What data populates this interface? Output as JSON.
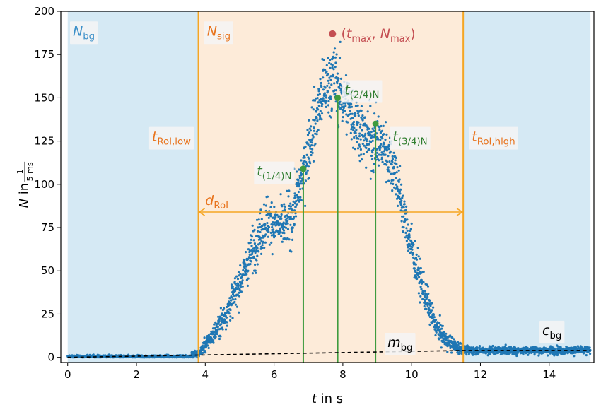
{
  "chart_data": {
    "type": "scatter",
    "xlabel": {
      "var": "t",
      "rest": " in s"
    },
    "ylabel": {
      "var": "N",
      "mid": " in ",
      "frac_num": "1",
      "frac_den": "5 ms"
    },
    "xlim": [
      -0.2,
      15.3
    ],
    "ylim": [
      -3,
      200
    ],
    "xticks": [
      0,
      2,
      4,
      6,
      8,
      10,
      12,
      14
    ],
    "yticks": [
      0,
      25,
      50,
      75,
      100,
      125,
      150,
      175,
      200
    ],
    "grid": false,
    "colors": {
      "points": "#1f77b4",
      "bg_region": "#d5e9f4",
      "sig_region": "#fdebd9",
      "roi_lines": "#f5a623",
      "quantile_lines": "#3e9b3e",
      "quantile_text": "#2f7d2f",
      "max_marker": "#c44e52",
      "nbg_text": "#3b8fc8",
      "roi_text": "#e8731c",
      "label_box": "#f4f4f4"
    },
    "regions": {
      "background_left": [
        0,
        3.8
      ],
      "signal": [
        3.8,
        11.5
      ],
      "background_right": [
        11.5,
        15.2
      ]
    },
    "roi": {
      "low": 3.8,
      "high": 11.5,
      "arrow_y": 84
    },
    "quantiles": [
      {
        "label_main": "t",
        "label_sub": "(1/4)N",
        "t": 6.85,
        "N": 109
      },
      {
        "label_main": "t",
        "label_sub": "(2/4)N",
        "t": 7.85,
        "N": 150
      },
      {
        "label_main": "t",
        "label_sub": "(3/4)N",
        "t": 8.95,
        "N": 135
      }
    ],
    "max_point": {
      "t": 7.7,
      "N": 187
    },
    "background_line": {
      "x": [
        0,
        11.5,
        15.2
      ],
      "y": [
        0,
        4,
        4
      ]
    },
    "signal_profile": {
      "t": [
        3.8,
        4.2,
        4.6,
        5.0,
        5.4,
        5.8,
        6.2,
        6.5,
        6.8,
        7.1,
        7.4,
        7.7,
        8.0,
        8.3,
        8.6,
        8.9,
        9.2,
        9.5,
        9.8,
        10.1,
        10.4,
        10.7,
        11.0,
        11.3,
        11.5
      ],
      "N": [
        2,
        12,
        25,
        43,
        63,
        80,
        75,
        80,
        103,
        130,
        152,
        162,
        150,
        140,
        128,
        125,
        122,
        110,
        80,
        55,
        35,
        18,
        10,
        6,
        5
      ]
    },
    "labels": {
      "nbg_main": "N",
      "nbg_sub": "bg",
      "nsig_main": "N",
      "nsig_sub": "sig",
      "troi_low_main": "t",
      "troi_low_sub": "RoI,low",
      "troi_high_main": "t",
      "troi_high_sub": "RoI,high",
      "droi_main": "d",
      "droi_sub": "RoI",
      "max_open": "(",
      "max_t": "t",
      "max_t_sub": "max",
      "max_sep": ", ",
      "max_n": "N",
      "max_n_sub": "max",
      "max_close": ")",
      "mbg_main": "m",
      "mbg_sub": "bg",
      "cbg_main": "c",
      "cbg_sub": "bg"
    }
  }
}
